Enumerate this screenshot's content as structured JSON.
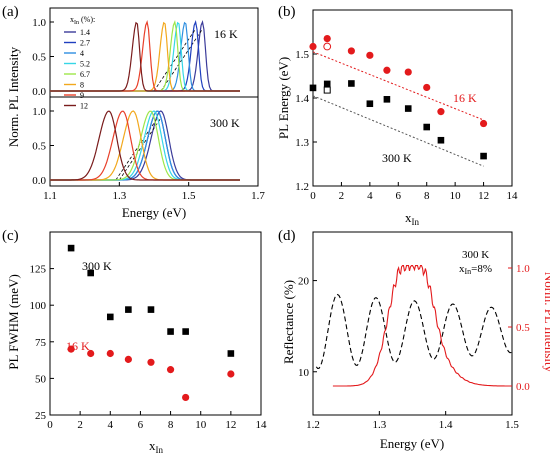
{
  "panels": [
    {
      "letter": "(a)",
      "type": "line",
      "xlabel": "Energy (eV)",
      "ylabel": "Norm. PL Intensity",
      "xlim": [
        1.1,
        1.7
      ],
      "xticks": [
        "1.1",
        "1.3",
        "1.5",
        "1.7"
      ],
      "yticks": [
        "0.0",
        "0.5",
        "1.0"
      ],
      "legend_title": "x_In (%):",
      "legend": [
        {
          "label": "1.4",
          "color": "#3b3b9a"
        },
        {
          "label": "2.7",
          "color": "#1f3fbf"
        },
        {
          "label": "4",
          "color": "#2f8fe0"
        },
        {
          "label": "5.2",
          "color": "#36d6e6"
        },
        {
          "label": "6.7",
          "color": "#9ee64a"
        },
        {
          "label": "8",
          "color": "#f2a81d"
        },
        {
          "label": "9",
          "color": "#e8402a"
        },
        {
          "label": "12",
          "color": "#7a1c1c"
        }
      ],
      "sub": [
        {
          "label": "16 K",
          "peaks": [
            1.54,
            1.52,
            1.49,
            1.47,
            1.46,
            1.43,
            1.38,
            1.35
          ]
        },
        {
          "label": "300 K",
          "peaks": [
            1.42,
            1.41,
            1.41,
            1.4,
            1.39,
            1.34,
            1.31,
            1.27
          ]
        }
      ]
    },
    {
      "letter": "(b)",
      "type": "scatter",
      "xlabel": "x_In",
      "ylabel": "PL Energy (eV)",
      "xlim": [
        0,
        14
      ],
      "ylim": [
        1.2,
        1.6
      ],
      "xticks": [
        "0",
        "2",
        "4",
        "6",
        "8",
        "10",
        "12",
        "14"
      ],
      "yticks": [
        "1.2",
        "1.3",
        "1.4",
        "1.5"
      ],
      "series": [
        {
          "name": "16 K",
          "color": "#e31a1c",
          "marker": "circle",
          "x": [
            0,
            1,
            2.7,
            4,
            5.2,
            6.7,
            8,
            9,
            12
          ],
          "y": [
            1.517,
            1.535,
            1.507,
            1.497,
            1.463,
            1.459,
            1.424,
            1.369,
            1.342
          ],
          "open": {
            "x": [
              1
            ],
            "y": [
              1.517
            ]
          }
        },
        {
          "name": "300 K",
          "color": "#000000",
          "marker": "square",
          "x": [
            0,
            1,
            2.7,
            4,
            5.2,
            6.7,
            8,
            9,
            12
          ],
          "y": [
            1.423,
            1.432,
            1.433,
            1.387,
            1.397,
            1.376,
            1.334,
            1.304,
            1.268
          ],
          "open": {
            "x": [
              1
            ],
            "y": [
              1.418
            ]
          }
        }
      ],
      "fits": [
        {
          "color": "#e31a1c",
          "x": [
            0,
            12
          ],
          "y": [
            1.505,
            1.35
          ]
        },
        {
          "color": "#555555",
          "x": [
            0,
            12
          ],
          "y": [
            1.405,
            1.245
          ]
        }
      ]
    },
    {
      "letter": "(c)",
      "type": "scatter",
      "xlabel": "x_In",
      "ylabel": "PL FWHM (meV)",
      "xlim": [
        0,
        14
      ],
      "ylim": [
        25,
        150
      ],
      "xticks": [
        "0",
        "2",
        "4",
        "6",
        "8",
        "10",
        "12",
        "14"
      ],
      "yticks": [
        "25",
        "50",
        "75",
        "100",
        "125"
      ],
      "series": [
        {
          "name": "300 K",
          "color": "#000000",
          "marker": "square",
          "x": [
            1.4,
            2.7,
            4,
            5.2,
            6.7,
            8,
            9,
            12
          ],
          "y": [
            139,
            122,
            92,
            97,
            97,
            82,
            82,
            67
          ]
        },
        {
          "name": "16 K",
          "color": "#e31a1c",
          "marker": "circle",
          "x": [
            1.4,
            2.7,
            4,
            5.2,
            6.7,
            8,
            9,
            12
          ],
          "y": [
            70,
            67,
            67,
            63,
            61,
            56,
            37,
            53
          ]
        }
      ]
    },
    {
      "letter": "(d)",
      "type": "line",
      "xlabel": "Energy (eV)",
      "ylabel_left": "Reflectance (%)",
      "ylabel_right": "Norm. PL Intensity",
      "xlim": [
        1.2,
        1.5
      ],
      "xticks": [
        "1.2",
        "1.3",
        "1.4",
        "1.5"
      ],
      "yticks_left": [
        "10",
        "20"
      ],
      "yticks_right": [
        "0.0",
        "0.5",
        "1.0"
      ],
      "annotation": [
        "300 K",
        "x_In=8%"
      ],
      "series": [
        {
          "name": "Reflectance",
          "color": "#000000",
          "dashed": true
        },
        {
          "name": "PL",
          "color": "#e31a1c",
          "peak": 1.335
        }
      ]
    }
  ],
  "chart_data": [
    {
      "type": "line",
      "xlabel": "Energy (eV)",
      "ylabel": "Norm. PL Intensity",
      "xlim": [
        1.1,
        1.7
      ],
      "series_16K_peaks_eV": {
        "1.4": 1.54,
        "2.7": 1.52,
        "4": 1.49,
        "5.2": 1.47,
        "6.7": 1.46,
        "8": 1.43,
        "9": 1.38,
        "12": 1.35
      },
      "series_300K_peaks_eV": {
        "1.4": 1.42,
        "2.7": 1.41,
        "4": 1.41,
        "5.2": 1.4,
        "6.7": 1.39,
        "8": 1.34,
        "9": 1.31,
        "12": 1.27
      }
    },
    {
      "type": "scatter",
      "xlabel": "x_In",
      "ylabel": "PL Energy (eV)",
      "series": [
        {
          "name": "16 K",
          "x": [
            0,
            1,
            2.7,
            4,
            5.2,
            6.7,
            8,
            9,
            12
          ],
          "y": [
            1.517,
            1.535,
            1.507,
            1.497,
            1.463,
            1.459,
            1.424,
            1.369,
            1.342
          ]
        },
        {
          "name": "300 K",
          "x": [
            0,
            1,
            2.7,
            4,
            5.2,
            6.7,
            8,
            9,
            12
          ],
          "y": [
            1.423,
            1.432,
            1.433,
            1.387,
            1.397,
            1.376,
            1.334,
            1.304,
            1.268
          ]
        }
      ]
    },
    {
      "type": "scatter",
      "xlabel": "x_In",
      "ylabel": "PL FWHM (meV)",
      "series": [
        {
          "name": "300 K",
          "x": [
            1.4,
            2.7,
            4,
            5.2,
            6.7,
            8,
            9,
            12
          ],
          "y": [
            139,
            122,
            92,
            97,
            97,
            82,
            82,
            67
          ]
        },
        {
          "name": "16 K",
          "x": [
            1.4,
            2.7,
            4,
            5.2,
            6.7,
            8,
            9,
            12
          ],
          "y": [
            70,
            67,
            67,
            63,
            61,
            56,
            37,
            53
          ]
        }
      ]
    },
    {
      "type": "line",
      "xlabel": "Energy (eV)",
      "ylabel": "Reflectance (%)",
      "xlim": [
        1.2,
        1.5
      ],
      "annotation": "300 K, x_In=8%"
    }
  ]
}
